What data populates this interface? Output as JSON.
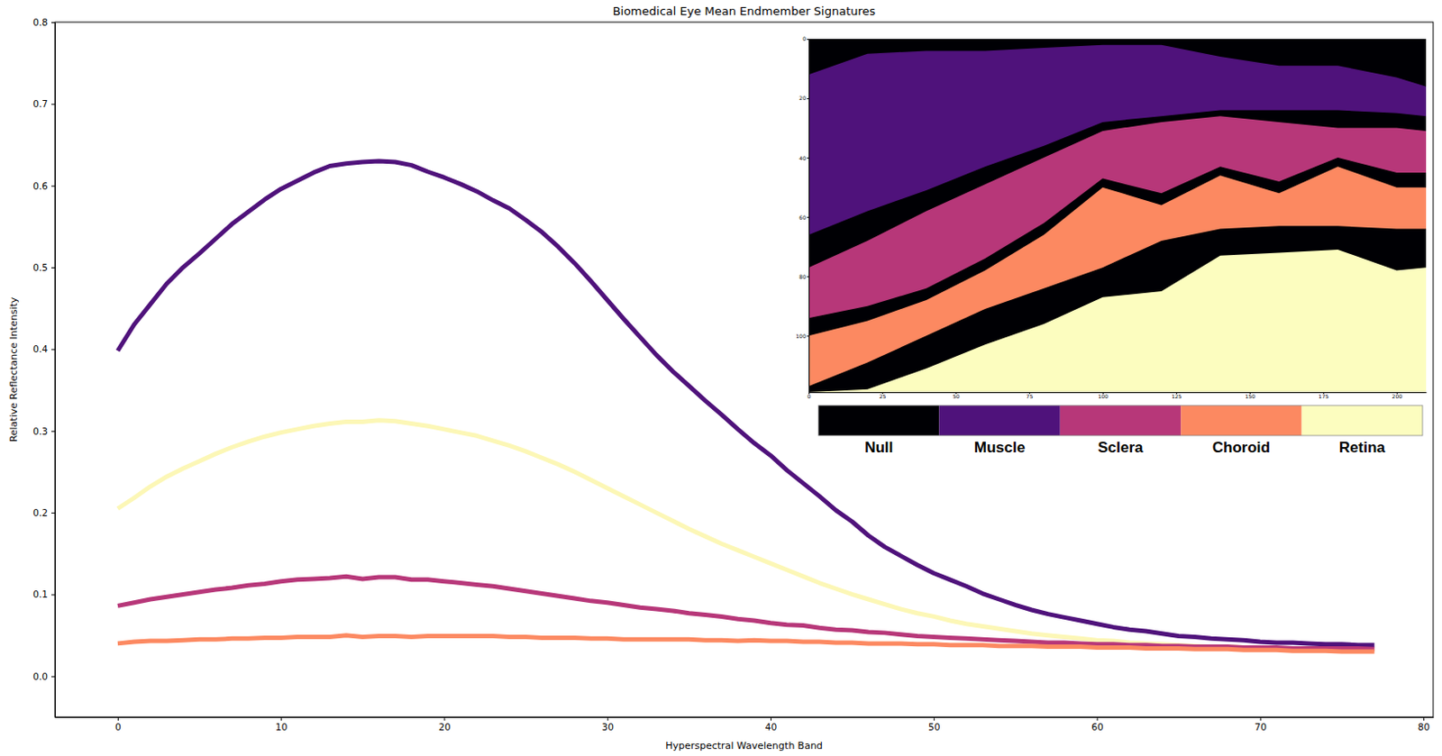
{
  "chart_data": [
    {
      "type": "line",
      "title": "Biomedical Eye Mean Endmember Signatures",
      "xlabel": "Hyperspectral Wavelength Band",
      "ylabel": "Relative Reflectance Intensity",
      "xlim": [
        -3.85,
        80.6
      ],
      "ylim": [
        -0.05,
        0.8
      ],
      "xticks": [
        0,
        10,
        20,
        30,
        40,
        50,
        60,
        70,
        80
      ],
      "yticks": [
        {
          "value": 0,
          "label": "0.0"
        },
        0.1,
        0.2,
        0.3,
        0.4,
        0.5,
        0.6,
        0.7,
        0.8
      ],
      "grid": false,
      "x": [
        0,
        1,
        2,
        3,
        4,
        5,
        6,
        7,
        8,
        9,
        10,
        11,
        12,
        13,
        14,
        15,
        16,
        17,
        18,
        19,
        20,
        21,
        22,
        23,
        24,
        25,
        26,
        27,
        28,
        29,
        30,
        31,
        32,
        33,
        34,
        35,
        36,
        37,
        38,
        39,
        40,
        41,
        42,
        43,
        44,
        45,
        46,
        47,
        48,
        49,
        50,
        51,
        52,
        53,
        54,
        55,
        56,
        57,
        58,
        59,
        60,
        61,
        62,
        63,
        64,
        65,
        66,
        67,
        68,
        69,
        70,
        71,
        72,
        73,
        74,
        75,
        76,
        77
      ],
      "series": [
        {
          "color": "#4f127b",
          "values": [
            0.398,
            0.43,
            0.455,
            0.48,
            0.5,
            0.517,
            0.535,
            0.553,
            0.568,
            0.583,
            0.596,
            0.606,
            0.616,
            0.624,
            0.627,
            0.629,
            0.63,
            0.629,
            0.625,
            0.617,
            0.61,
            0.602,
            0.593,
            0.582,
            0.572,
            0.558,
            0.543,
            0.525,
            0.505,
            0.483,
            0.46,
            0.437,
            0.415,
            0.393,
            0.373,
            0.355,
            0.337,
            0.32,
            0.302,
            0.285,
            0.27,
            0.252,
            0.236,
            0.22,
            0.203,
            0.189,
            0.172,
            0.158,
            0.147,
            0.136,
            0.126,
            0.118,
            0.11,
            0.101,
            0.094,
            0.087,
            0.081,
            0.076,
            0.072,
            0.068,
            0.064,
            0.06,
            0.057,
            0.055,
            0.052,
            0.049,
            0.048,
            0.046,
            0.045,
            0.044,
            0.042,
            0.041,
            0.041,
            0.04,
            0.039,
            0.039,
            0.038,
            0.038
          ]
        },
        {
          "color": "#fcf7b6",
          "values": [
            0.205,
            0.218,
            0.232,
            0.244,
            0.254,
            0.263,
            0.272,
            0.28,
            0.287,
            0.293,
            0.298,
            0.302,
            0.306,
            0.309,
            0.311,
            0.311,
            0.313,
            0.312,
            0.309,
            0.306,
            0.302,
            0.298,
            0.294,
            0.288,
            0.282,
            0.275,
            0.267,
            0.259,
            0.25,
            0.24,
            0.23,
            0.22,
            0.21,
            0.2,
            0.19,
            0.18,
            0.171,
            0.162,
            0.154,
            0.146,
            0.138,
            0.13,
            0.122,
            0.114,
            0.107,
            0.1,
            0.094,
            0.088,
            0.082,
            0.077,
            0.073,
            0.068,
            0.064,
            0.061,
            0.058,
            0.055,
            0.052,
            0.05,
            0.048,
            0.046,
            0.044,
            0.043,
            0.041,
            0.04,
            0.039,
            0.038,
            0.037,
            0.036,
            0.036,
            0.035,
            0.035,
            0.034,
            0.034,
            0.033,
            0.033,
            0.033,
            0.032,
            0.032
          ]
        },
        {
          "color": "#b73779",
          "values": [
            0.086,
            0.09,
            0.094,
            0.097,
            0.1,
            0.103,
            0.106,
            0.108,
            0.111,
            0.113,
            0.116,
            0.118,
            0.119,
            0.12,
            0.122,
            0.119,
            0.121,
            0.121,
            0.118,
            0.118,
            0.116,
            0.114,
            0.112,
            0.11,
            0.107,
            0.104,
            0.101,
            0.098,
            0.095,
            0.092,
            0.09,
            0.087,
            0.084,
            0.082,
            0.08,
            0.077,
            0.075,
            0.073,
            0.07,
            0.068,
            0.065,
            0.063,
            0.062,
            0.059,
            0.057,
            0.056,
            0.054,
            0.053,
            0.051,
            0.049,
            0.048,
            0.047,
            0.046,
            0.045,
            0.044,
            0.043,
            0.042,
            0.041,
            0.041,
            0.04,
            0.039,
            0.039,
            0.038,
            0.038,
            0.037,
            0.037,
            0.036,
            0.036,
            0.036,
            0.035,
            0.035,
            0.035,
            0.034,
            0.034,
            0.034,
            0.034,
            0.034,
            0.033
          ]
        },
        {
          "color": "#fc8961",
          "values": [
            0.04,
            0.042,
            0.043,
            0.043,
            0.044,
            0.045,
            0.045,
            0.046,
            0.046,
            0.047,
            0.047,
            0.048,
            0.048,
            0.048,
            0.05,
            0.048,
            0.049,
            0.049,
            0.048,
            0.049,
            0.049,
            0.049,
            0.049,
            0.049,
            0.048,
            0.048,
            0.047,
            0.047,
            0.047,
            0.046,
            0.046,
            0.045,
            0.045,
            0.045,
            0.045,
            0.045,
            0.044,
            0.044,
            0.043,
            0.044,
            0.043,
            0.043,
            0.042,
            0.042,
            0.041,
            0.041,
            0.04,
            0.04,
            0.04,
            0.039,
            0.039,
            0.038,
            0.038,
            0.038,
            0.037,
            0.037,
            0.037,
            0.036,
            0.036,
            0.036,
            0.035,
            0.035,
            0.035,
            0.034,
            0.034,
            0.034,
            0.033,
            0.033,
            0.033,
            0.032,
            0.032,
            0.032,
            0.031,
            0.031,
            0.031,
            0.03,
            0.03,
            0.03
          ]
        }
      ]
    },
    {
      "type": "area",
      "xlim": [
        0,
        210
      ],
      "ylim": [
        0,
        119
      ],
      "xticks": [
        0,
        25,
        50,
        75,
        100,
        125,
        150,
        175,
        200
      ],
      "yticks": [
        0,
        20,
        40,
        60,
        80,
        100
      ],
      "legend": "bottom",
      "x": [
        0,
        20,
        40,
        60,
        80,
        100,
        120,
        140,
        160,
        180,
        200,
        210
      ],
      "series": [
        {
          "name": "Null",
          "color": "#000004",
          "upper": [
            0,
            0,
            0,
            0,
            0,
            0,
            0,
            0,
            0,
            0,
            0,
            0
          ],
          "lower": [
            119,
            119,
            119,
            119,
            119,
            119,
            119,
            119,
            119,
            119,
            119,
            119
          ]
        },
        {
          "name": "Muscle",
          "color": "#4f127b",
          "upper": [
            12,
            5,
            4,
            4,
            3,
            2,
            2,
            6,
            9,
            9,
            13,
            16
          ],
          "lower": [
            66,
            58,
            51,
            43,
            36,
            28,
            26,
            24,
            24,
            24,
            25,
            26
          ]
        },
        {
          "name": "Sclera",
          "color": "#b73779",
          "upper": [
            77,
            68,
            58,
            49,
            40,
            31,
            28,
            26,
            28,
            30,
            30,
            31
          ],
          "lower": [
            94,
            90,
            84,
            74,
            62,
            47,
            52,
            43,
            48,
            40,
            45,
            45
          ]
        },
        {
          "name": "Choroid",
          "color": "#fc8961",
          "upper": [
            100,
            95,
            88,
            78,
            66,
            50,
            56,
            46,
            52,
            43,
            50,
            50
          ],
          "lower": [
            117,
            109,
            100,
            91,
            84,
            77,
            68,
            64,
            63,
            63,
            64,
            64
          ]
        },
        {
          "name": "Retina",
          "color": "#fcfdbf",
          "upper": [
            119,
            118,
            111,
            103,
            96,
            87,
            85,
            73,
            72,
            71,
            78,
            77
          ],
          "lower": [
            119,
            119,
            119,
            119,
            119,
            119,
            119,
            119,
            119,
            119,
            119,
            119
          ]
        }
      ]
    }
  ]
}
